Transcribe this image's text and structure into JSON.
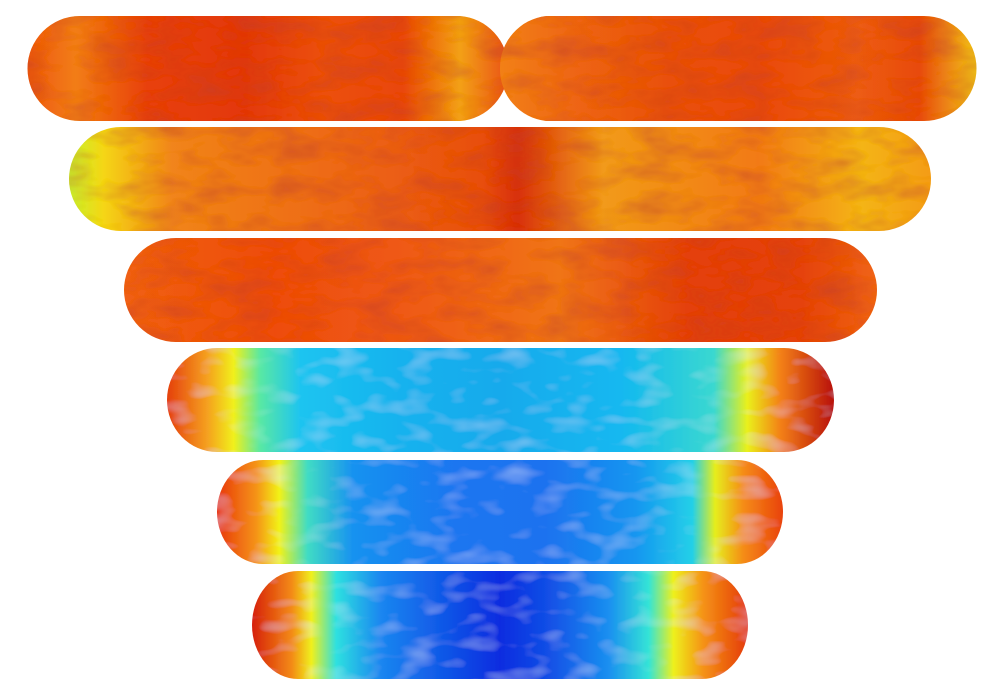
{
  "figure": {
    "colors": {
      "background": "#ffffff",
      "deep_blue": "#0a2ad8",
      "blue": "#1a6cf0",
      "cyan": "#12c8f2",
      "green": "#4ce8b0",
      "yellow": "#f2f20a",
      "orange": "#f59a10",
      "red": "#ee3a08",
      "dark_red": "#a20c04"
    },
    "capsules": [
      {
        "id": "capsule-1",
        "kind": "dividing-cell",
        "parts": [
          {
            "id": "left-half",
            "stops": [
              [
                0.0,
                "#ee5810"
              ],
              [
                0.1,
                "#f27d14"
              ],
              [
                0.25,
                "#e8400a"
              ],
              [
                0.45,
                "#e33808"
              ],
              [
                0.62,
                "#ec5010"
              ],
              [
                0.78,
                "#e94610"
              ],
              [
                0.9,
                "#f3a012"
              ],
              [
                1.0,
                "#ea5312"
              ]
            ]
          },
          {
            "id": "right-half",
            "stops": [
              [
                0.0,
                "#f28018"
              ],
              [
                0.15,
                "#ee6612"
              ],
              [
                0.35,
                "#e95010"
              ],
              [
                0.55,
                "#ea4a0e"
              ],
              [
                0.75,
                "#ed5c12"
              ],
              [
                0.88,
                "#e84a10"
              ],
              [
                1.0,
                "#f1c215"
              ]
            ]
          }
        ]
      },
      {
        "id": "capsule-2",
        "kind": "cell",
        "stops": [
          [
            0.0,
            "#c8f22e"
          ],
          [
            0.04,
            "#f5d614"
          ],
          [
            0.12,
            "#f1841a"
          ],
          [
            0.3,
            "#ee6a14"
          ],
          [
            0.48,
            "#e84e10"
          ],
          [
            0.52,
            "#d8300a"
          ],
          [
            0.62,
            "#f29a1a"
          ],
          [
            0.8,
            "#f27a14"
          ],
          [
            0.92,
            "#f4b416"
          ],
          [
            1.0,
            "#f49c14"
          ]
        ]
      },
      {
        "id": "capsule-3",
        "kind": "cell",
        "stops": [
          [
            0.0,
            "#f06012"
          ],
          [
            0.2,
            "#ee4c10"
          ],
          [
            0.4,
            "#ef5c14"
          ],
          [
            0.58,
            "#f07418"
          ],
          [
            0.75,
            "#e4400c"
          ],
          [
            0.9,
            "#e5420c"
          ],
          [
            1.0,
            "#f06414"
          ]
        ]
      },
      {
        "id": "capsule-4",
        "kind": "cell",
        "stops": [
          [
            0.0,
            "#e5400c"
          ],
          [
            0.06,
            "#f5a020"
          ],
          [
            0.1,
            "#f1f01a"
          ],
          [
            0.14,
            "#58e8a4"
          ],
          [
            0.2,
            "#1ec4f0"
          ],
          [
            0.35,
            "#12b2ee"
          ],
          [
            0.5,
            "#18aaec"
          ],
          [
            0.68,
            "#12b8f0"
          ],
          [
            0.82,
            "#3ad8d0"
          ],
          [
            0.87,
            "#eaf01a"
          ],
          [
            0.92,
            "#f38018"
          ],
          [
            1.0,
            "#b81006"
          ]
        ]
      },
      {
        "id": "capsule-5",
        "kind": "cell",
        "stops": [
          [
            0.0,
            "#e8380a"
          ],
          [
            0.07,
            "#f59418"
          ],
          [
            0.11,
            "#f2f218"
          ],
          [
            0.16,
            "#40dcc4"
          ],
          [
            0.24,
            "#1892f0"
          ],
          [
            0.42,
            "#1a76f0"
          ],
          [
            0.58,
            "#1c72ef"
          ],
          [
            0.74,
            "#1496f0"
          ],
          [
            0.84,
            "#24d0e8"
          ],
          [
            0.88,
            "#e6ee1c"
          ],
          [
            0.93,
            "#f58c16"
          ],
          [
            1.0,
            "#e9420c"
          ]
        ]
      },
      {
        "id": "capsule-6",
        "kind": "cell",
        "stops": [
          [
            0.0,
            "#d6200a"
          ],
          [
            0.08,
            "#f38a16"
          ],
          [
            0.12,
            "#f0f01c"
          ],
          [
            0.17,
            "#2ee0e0"
          ],
          [
            0.26,
            "#1a86f0"
          ],
          [
            0.4,
            "#0f52e6"
          ],
          [
            0.5,
            "#0a2ce0"
          ],
          [
            0.6,
            "#1250e6"
          ],
          [
            0.72,
            "#1a90f0"
          ],
          [
            0.8,
            "#34e4d6"
          ],
          [
            0.85,
            "#eef01c"
          ],
          [
            0.91,
            "#f59214"
          ],
          [
            1.0,
            "#e43a0a"
          ]
        ]
      }
    ]
  }
}
